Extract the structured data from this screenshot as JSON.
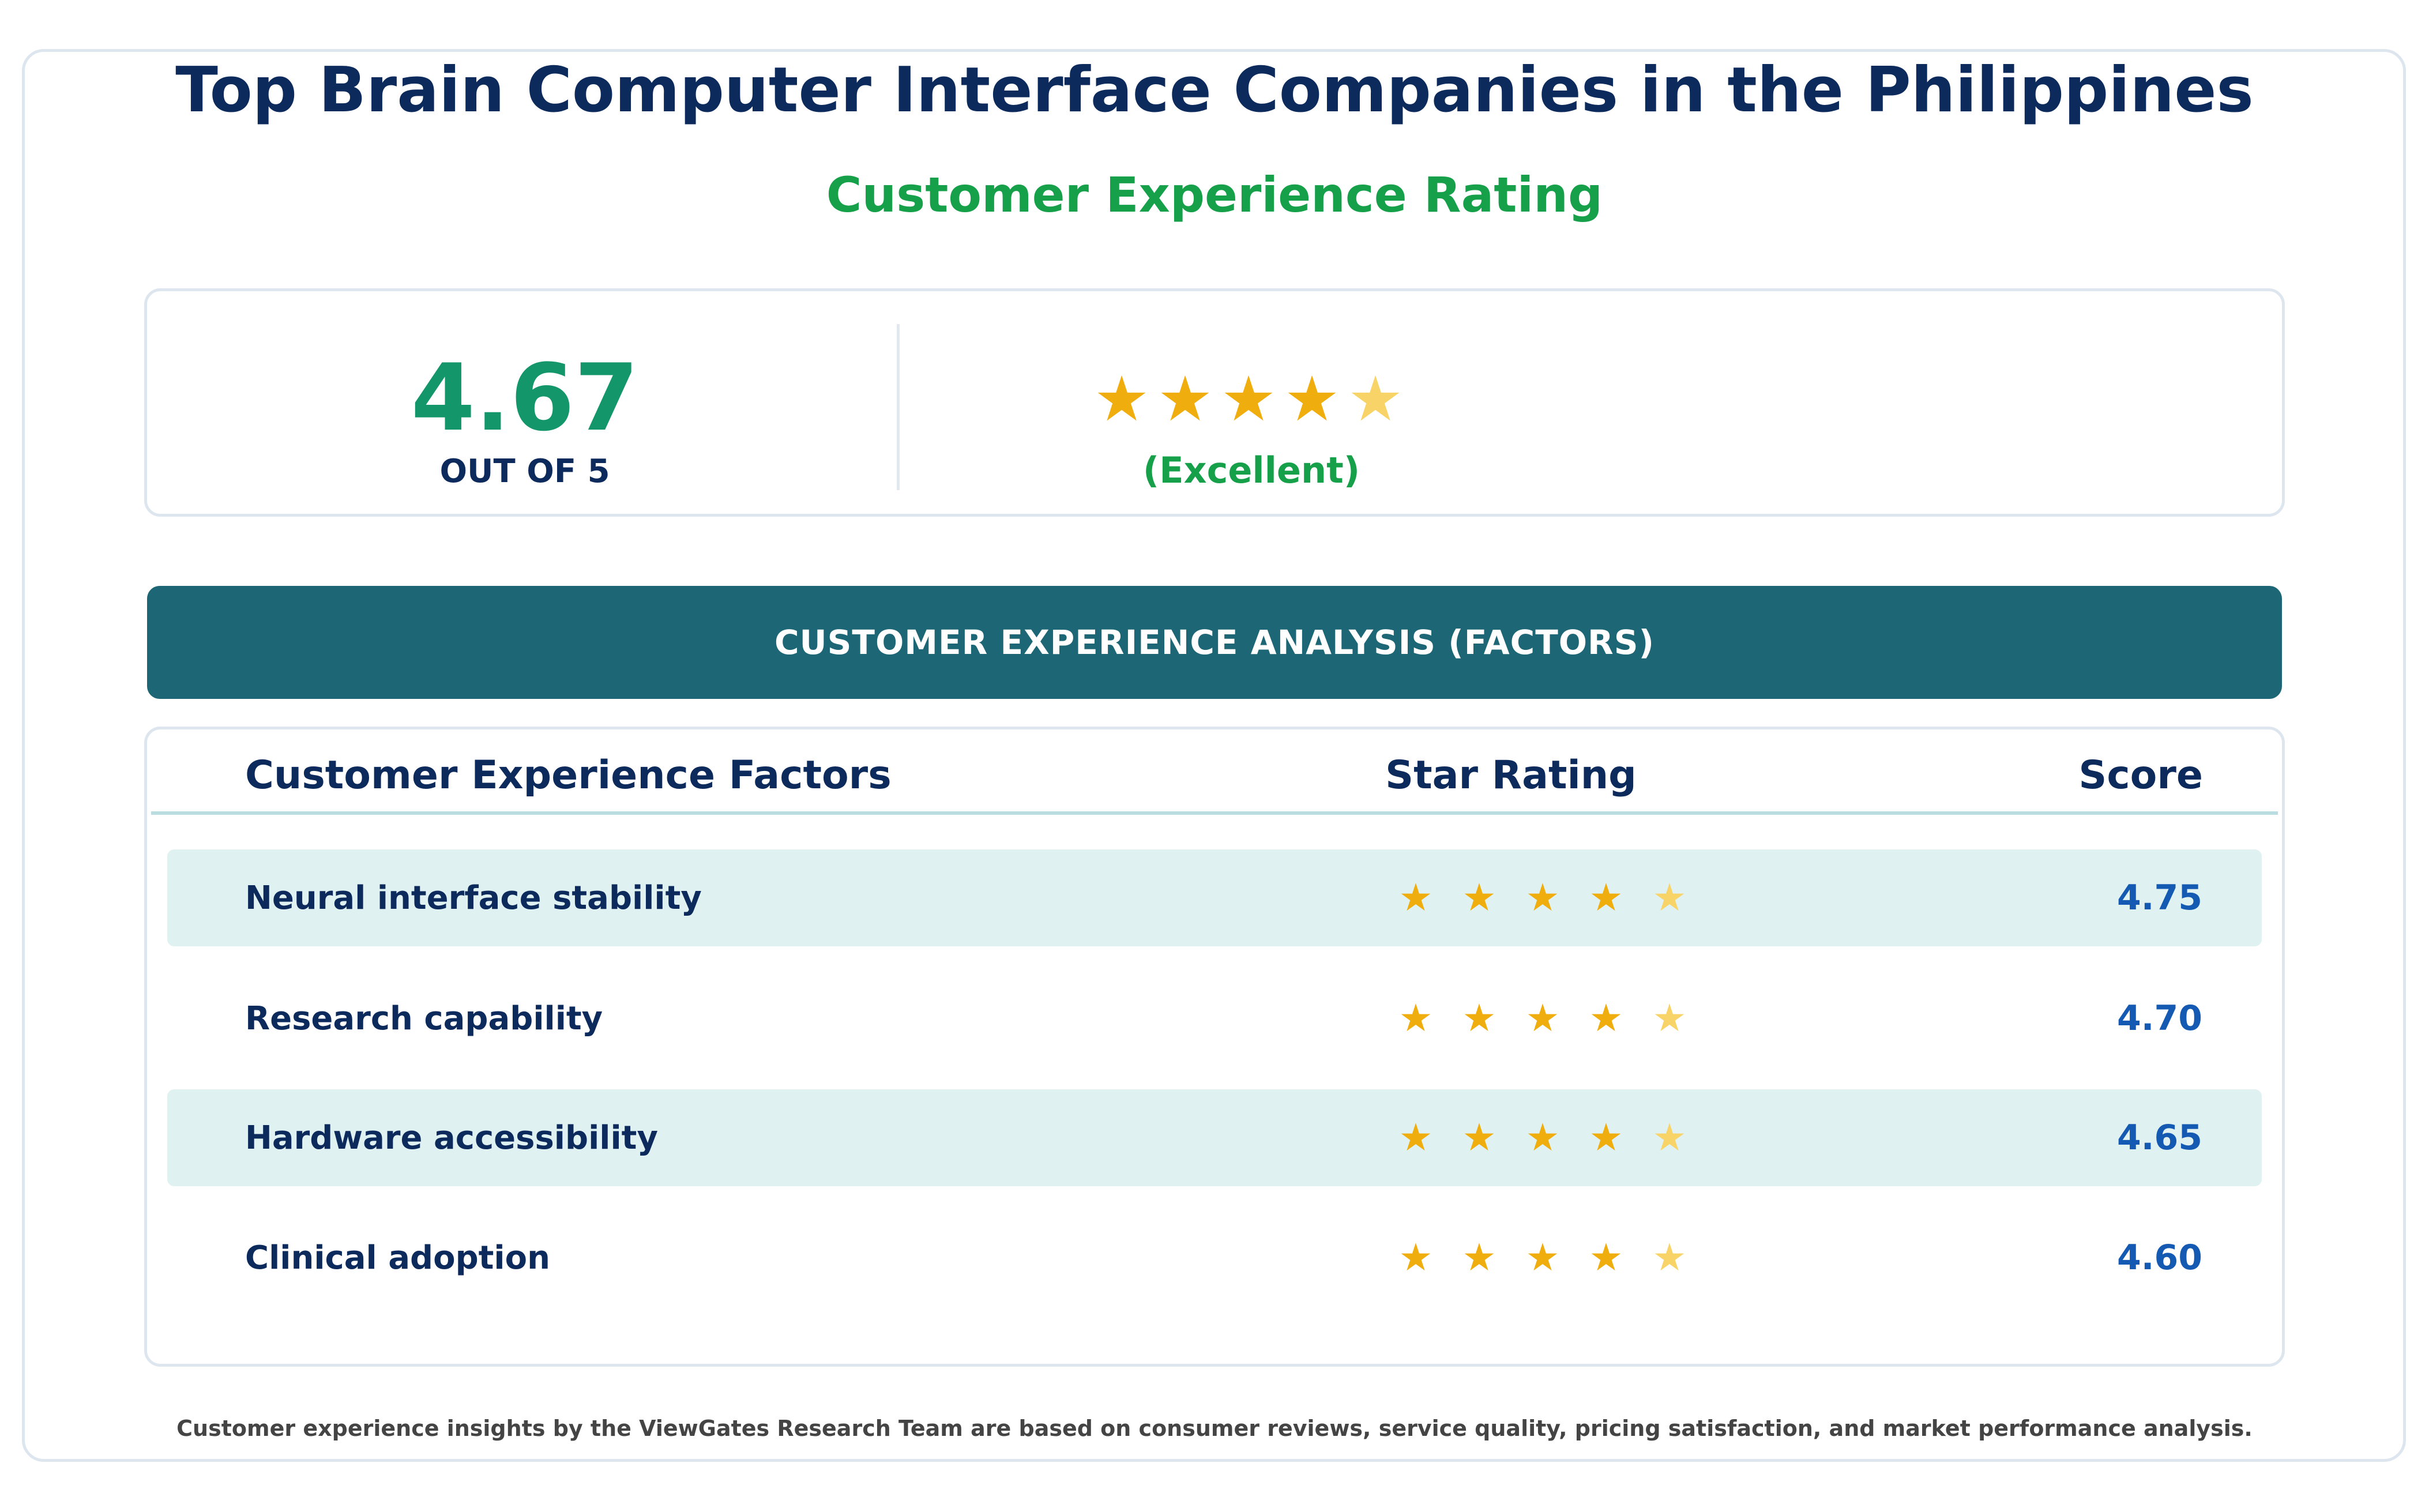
{
  "header": {
    "title": "Top Brain Computer Interface Companies in the Philippines",
    "subtitle": "Customer Experience Rating"
  },
  "summary": {
    "score": "4.67",
    "out_of": "OUT OF 5",
    "rating_label": "(Excellent)",
    "stars_value": 4.67
  },
  "banner": {
    "label": "CUSTOMER EXPERIENCE ANALYSIS (FACTORS)"
  },
  "table": {
    "headers": {
      "factor": "Customer Experience Factors",
      "stars": "Star Rating",
      "score": "Score"
    },
    "rows": [
      {
        "label": "Neural interface stability",
        "score": "4.75",
        "stars_value": 4.75
      },
      {
        "label": "Research capability",
        "score": "4.70",
        "stars_value": 4.7
      },
      {
        "label": "Hardware accessibility",
        "score": "4.65",
        "stars_value": 4.65
      },
      {
        "label": "Clinical adoption",
        "score": "4.60",
        "stars_value": 4.6
      }
    ]
  },
  "footer": {
    "note": "Customer experience insights by the ViewGates Research Team are based on consumer reviews, service quality, pricing satisfaction, and market performance analysis."
  },
  "icons": {
    "star": "star-icon"
  },
  "colors": {
    "title": "#0d2a5c",
    "accent_green": "#16a04a",
    "score_green": "#13966a",
    "banner": "#1c6675",
    "row_shade": "#e0f1f1",
    "star_full": "#f0ad0e",
    "star_partial": "#f8d468",
    "score_blue": "#1459b2"
  }
}
